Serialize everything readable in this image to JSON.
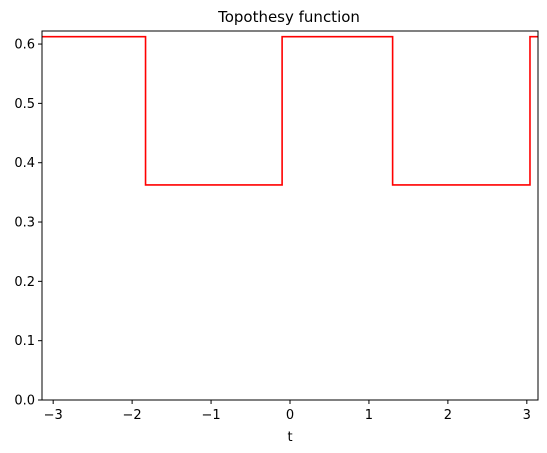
{
  "chart_data": {
    "type": "line",
    "title": "Topothesy function",
    "xlabel": "t",
    "ylabel": "",
    "xlim": [
      -3.14159,
      3.14159
    ],
    "ylim": [
      0.0,
      0.622
    ],
    "grid": false,
    "x_ticks": [
      -3,
      -2,
      -1,
      0,
      1,
      2,
      3
    ],
    "x_tick_labels": [
      "−3",
      "−2",
      "−1",
      "0",
      "1",
      "2",
      "3"
    ],
    "y_ticks": [
      0.0,
      0.1,
      0.2,
      0.3,
      0.4,
      0.5,
      0.6
    ],
    "y_tick_labels": [
      "0.0",
      "0.1",
      "0.2",
      "0.3",
      "0.4",
      "0.5",
      "0.6"
    ],
    "series": [
      {
        "color": "#ff0000",
        "x": [
          -3.14159,
          -1.83,
          -1.83,
          -0.1,
          -0.1,
          1.3,
          1.3,
          3.04,
          3.04,
          3.14159
        ],
        "y": [
          0.6125,
          0.6125,
          0.3625,
          0.3625,
          0.6125,
          0.6125,
          0.3625,
          0.3625,
          0.6125,
          0.6125
        ]
      }
    ]
  }
}
